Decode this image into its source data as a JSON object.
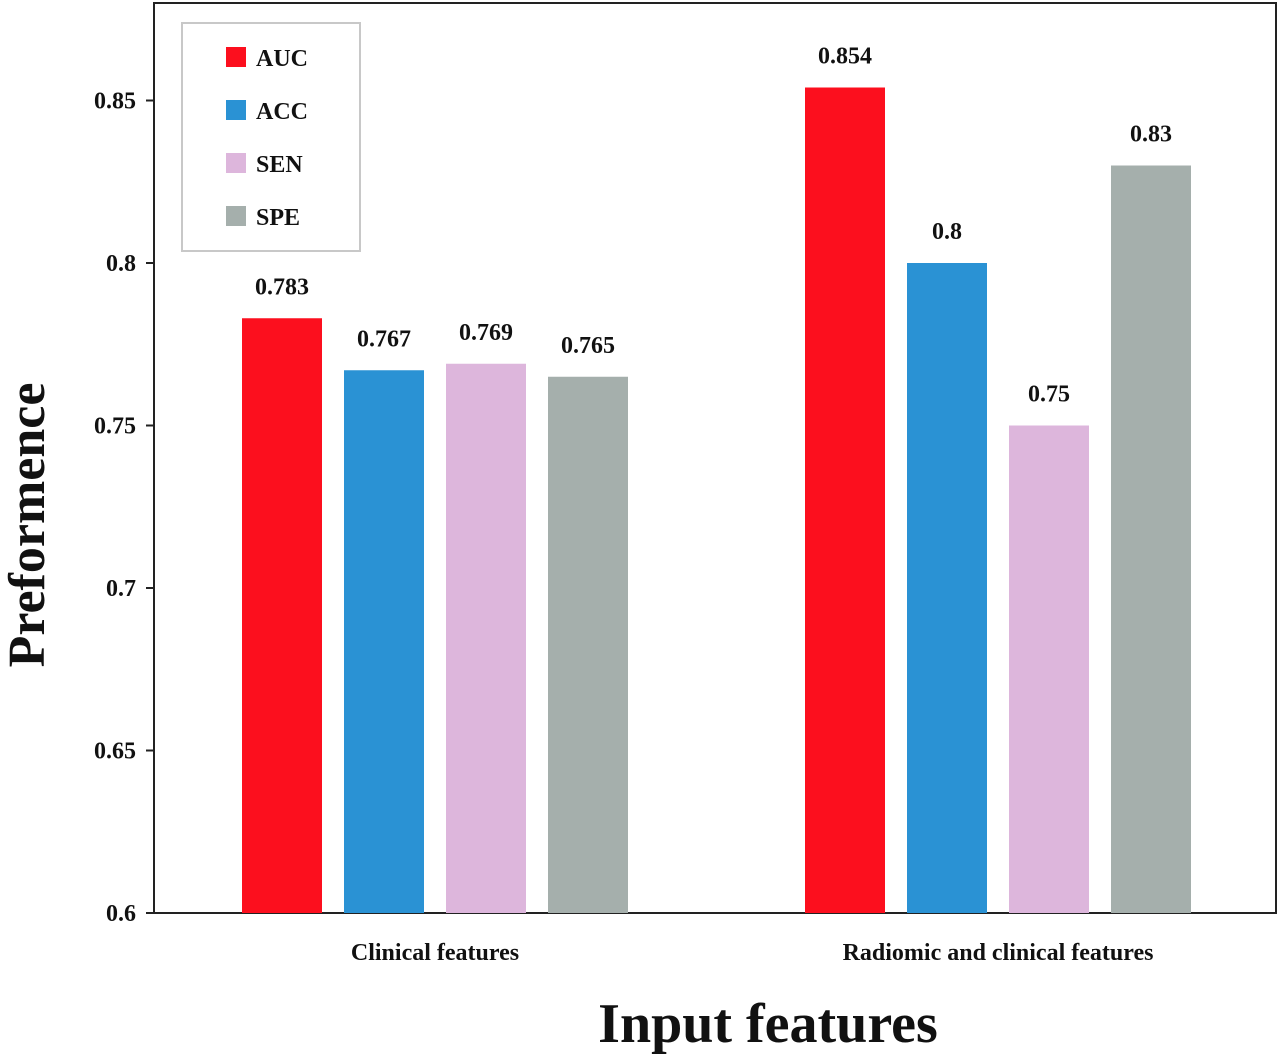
{
  "chart_data": {
    "type": "bar",
    "title": "",
    "xlabel": "Input features",
    "ylabel": "Preformence",
    "ylim": [
      0.6,
      0.88
    ],
    "yticks": [
      "0.6",
      "0.65",
      "0.7",
      "0.75",
      "0.8",
      "0.85"
    ],
    "categories": [
      "Clinical features",
      "Radiomic and clinical features"
    ],
    "series": [
      {
        "name": "AUC",
        "color": "#fc0f1e",
        "values": [
          0.783,
          0.854
        ],
        "labels": [
          "0.783",
          "0.854"
        ]
      },
      {
        "name": "ACC",
        "color": "#2a92d4",
        "values": [
          0.767,
          0.8
        ],
        "labels": [
          "0.767",
          "0.8"
        ]
      },
      {
        "name": "SEN",
        "color": "#ddb6dc",
        "values": [
          0.769,
          0.75
        ],
        "labels": [
          "0.769",
          "0.75"
        ]
      },
      {
        "name": "SPE",
        "color": "#a5afac",
        "values": [
          0.765,
          0.83
        ],
        "labels": [
          "0.765",
          "0.83"
        ]
      }
    ],
    "legend": "top-left",
    "grid": false
  }
}
